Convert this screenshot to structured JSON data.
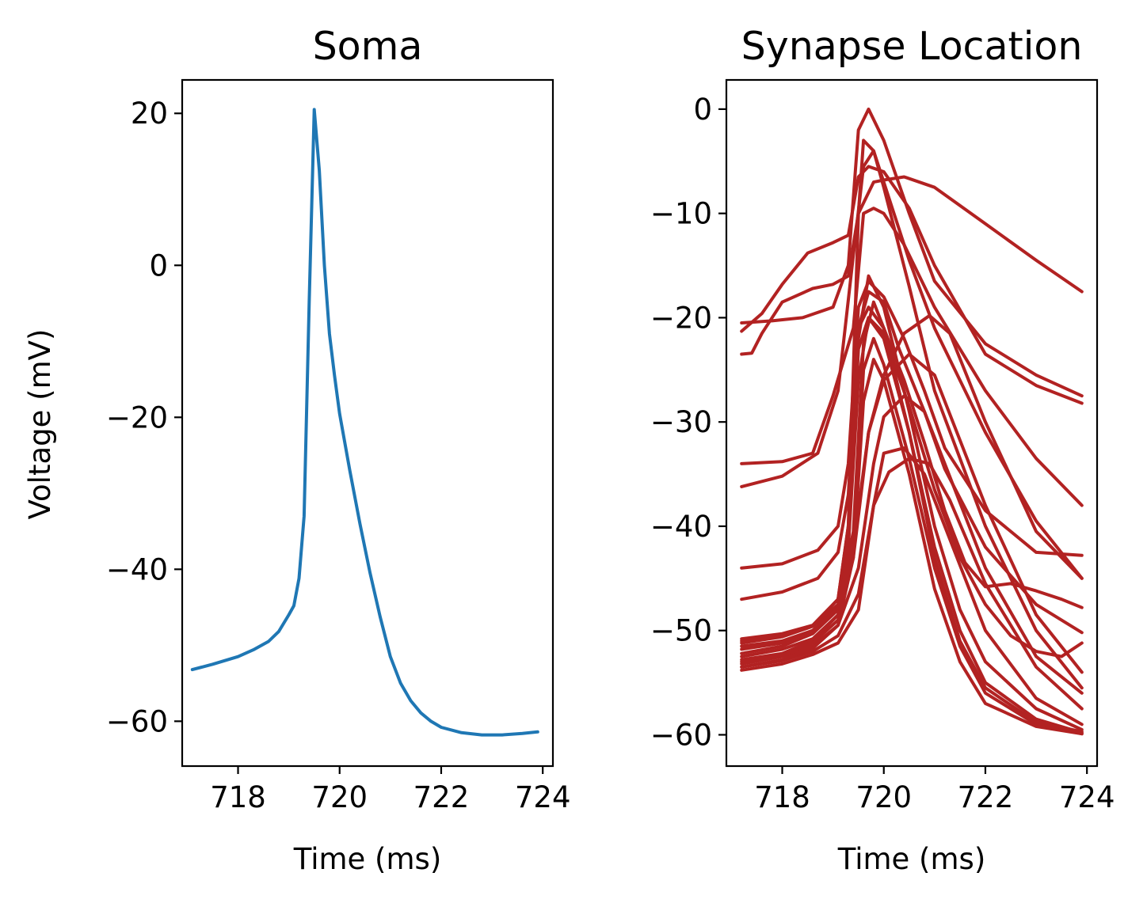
{
  "chart_data": [
    {
      "type": "line",
      "title": "Soma",
      "xlabel": "Time (ms)",
      "ylabel": "Voltage (mV)",
      "xlim": [
        716.9,
        724.2
      ],
      "ylim": [
        -65.9,
        24.4
      ],
      "xticks": [
        718,
        720,
        722,
        724
      ],
      "yticks": [
        20,
        0,
        -20,
        -40,
        -60
      ],
      "xtick_labels": [
        "718",
        "720",
        "722",
        "724"
      ],
      "ytick_labels": [
        "20",
        "0",
        "−20",
        "−40",
        "−60"
      ],
      "grid": false,
      "color": "#1f77b4",
      "series": [
        {
          "x": [
            717.1,
            717.5,
            718.0,
            718.3,
            718.6,
            718.8,
            719.0,
            719.1,
            719.2,
            719.3,
            719.4,
            719.5,
            719.6,
            719.7,
            719.8,
            719.9,
            720.0,
            720.2,
            720.4,
            720.6,
            720.8,
            721.0,
            721.2,
            721.4,
            721.6,
            721.8,
            722.0,
            722.4,
            722.8,
            723.2,
            723.6,
            723.9
          ],
          "y": [
            -53.2,
            -52.5,
            -51.5,
            -50.6,
            -49.5,
            -48.2,
            -46.0,
            -44.8,
            -41.2,
            -33.0,
            -5.0,
            20.5,
            12.5,
            0.0,
            -9.0,
            -14.5,
            -19.5,
            -27.0,
            -34.0,
            -40.5,
            -46.3,
            -51.5,
            -55.0,
            -57.3,
            -58.9,
            -60.0,
            -60.8,
            -61.5,
            -61.8,
            -61.8,
            -61.6,
            -61.4
          ]
        }
      ]
    },
    {
      "type": "line",
      "title": "Synapse Location",
      "xlabel": "Time (ms)",
      "ylabel": "",
      "xlim": [
        716.9,
        724.2
      ],
      "ylim": [
        -63.0,
        2.8
      ],
      "xticks": [
        718,
        720,
        722,
        724
      ],
      "yticks": [
        0,
        -10,
        -20,
        -30,
        -40,
        -50,
        -60
      ],
      "xtick_labels": [
        "718",
        "720",
        "722",
        "724"
      ],
      "ytick_labels": [
        "0",
        "−10",
        "−20",
        "−30",
        "−40",
        "−50",
        "−60"
      ],
      "grid": false,
      "color": "#b22222",
      "series": [
        {
          "x": [
            717.2,
            717.8,
            718.4,
            719.0,
            719.3,
            719.5,
            719.7,
            720.0,
            720.5,
            721.0,
            722.0,
            723.0,
            723.9
          ],
          "y": [
            -20.5,
            -20.3,
            -20.0,
            -19.0,
            -15.0,
            -2.0,
            0.0,
            -3.0,
            -10.0,
            -16.5,
            -22.5,
            -25.5,
            -27.5
          ]
        },
        {
          "x": [
            717.2,
            717.6,
            718.0,
            718.5,
            719.0,
            719.3,
            719.5,
            719.7,
            720.0,
            720.5,
            721.0,
            722.0,
            723.0,
            723.9
          ],
          "y": [
            -21.3,
            -19.6,
            -16.8,
            -13.8,
            -12.8,
            -12.1,
            -6.5,
            -5.5,
            -6.0,
            -9.5,
            -15.0,
            -23.5,
            -26.5,
            -28.2
          ]
        },
        {
          "x": [
            717.2,
            717.4,
            717.6,
            718.0,
            718.6,
            719.0,
            719.3,
            719.5,
            719.8,
            720.0,
            720.4,
            721.0,
            722.0,
            723.0,
            723.9
          ],
          "y": [
            -23.5,
            -23.4,
            -21.5,
            -18.5,
            -17.2,
            -16.8,
            -16.0,
            -10.0,
            -7.0,
            -6.8,
            -6.5,
            -7.5,
            -11.0,
            -14.5,
            -17.5
          ]
        },
        {
          "x": [
            717.2,
            718.0,
            718.6,
            719.0,
            719.4,
            719.6,
            719.8,
            720.0,
            720.4,
            721.0,
            722.0,
            723.0,
            723.9
          ],
          "y": [
            -34.0,
            -33.8,
            -33.0,
            -27.5,
            -21.0,
            -10.0,
            -9.5,
            -10.0,
            -13.0,
            -19.0,
            -27.0,
            -33.5,
            -38.0
          ]
        },
        {
          "x": [
            717.2,
            718.0,
            718.7,
            719.1,
            719.4,
            719.6,
            719.8,
            720.0,
            720.5,
            721.0,
            722.0,
            723.0,
            723.9
          ],
          "y": [
            -36.2,
            -35.2,
            -33.0,
            -27.0,
            -14.0,
            -5.5,
            -4.0,
            -7.0,
            -14.5,
            -21.0,
            -31.0,
            -39.5,
            -45.0
          ]
        },
        {
          "x": [
            717.2,
            718.0,
            718.7,
            719.1,
            719.3,
            719.5,
            719.7,
            720.0,
            720.4,
            720.8,
            721.2,
            722.0,
            723.0,
            723.9
          ],
          "y": [
            -44.0,
            -43.6,
            -42.3,
            -40.0,
            -34.0,
            -19.0,
            -16.5,
            -18.0,
            -22.0,
            -27.0,
            -32.5,
            -38.5,
            -42.5,
            -42.8
          ]
        },
        {
          "x": [
            717.2,
            718.0,
            718.7,
            719.1,
            719.3,
            719.5,
            719.7,
            720.0,
            720.3,
            720.8,
            721.2,
            722.0,
            723.0,
            723.9
          ],
          "y": [
            -47.0,
            -46.3,
            -45.0,
            -42.5,
            -37.0,
            -21.0,
            -17.5,
            -18.5,
            -23.0,
            -29.0,
            -34.5,
            -42.0,
            -47.5,
            -50.2
          ]
        },
        {
          "x": [
            717.2,
            718.0,
            718.6,
            719.1,
            719.3,
            719.5,
            719.6,
            719.8,
            720.0,
            720.5,
            721.0,
            722.0,
            723.0,
            723.9
          ],
          "y": [
            -50.8,
            -50.3,
            -49.5,
            -47.0,
            -40.0,
            -10.0,
            -3.0,
            -4.0,
            -7.5,
            -17.0,
            -27.0,
            -40.0,
            -50.0,
            -55.5
          ]
        },
        {
          "x": [
            717.2,
            718.0,
            718.6,
            719.1,
            719.3,
            719.5,
            719.7,
            720.0,
            720.4,
            720.8,
            721.2,
            721.6,
            722.0,
            722.5,
            723.0,
            723.5,
            723.9
          ],
          "y": [
            -51.2,
            -50.6,
            -49.6,
            -47.5,
            -41.0,
            -21.0,
            -19.0,
            -21.0,
            -26.0,
            -32.0,
            -38.5,
            -43.5,
            -45.8,
            -45.5,
            -46.2,
            -47.0,
            -47.8
          ]
        },
        {
          "x": [
            717.2,
            718.0,
            718.6,
            719.1,
            719.3,
            719.5,
            719.7,
            720.0,
            720.5,
            721.0,
            721.5,
            722.0,
            722.5,
            723.0,
            723.5,
            723.9
          ],
          "y": [
            -51.8,
            -51.2,
            -50.0,
            -47.8,
            -42.0,
            -23.0,
            -20.0,
            -21.5,
            -28.5,
            -36.5,
            -43.0,
            -47.5,
            -50.5,
            -52.0,
            -52.5,
            -51.2
          ]
        },
        {
          "x": [
            717.2,
            718.0,
            718.6,
            719.1,
            719.4,
            719.7,
            720.0,
            720.4,
            720.9,
            721.3,
            722.0,
            723.0,
            723.9
          ],
          "y": [
            -52.2,
            -51.5,
            -50.3,
            -48.0,
            -42.0,
            -31.0,
            -25.5,
            -21.5,
            -19.8,
            -21.5,
            -30.0,
            -40.5,
            -45.0
          ]
        },
        {
          "x": [
            717.2,
            718.0,
            718.6,
            719.1,
            719.4,
            719.7,
            720.0,
            720.5,
            721.0,
            722.0,
            723.0,
            723.9
          ],
          "y": [
            -52.8,
            -52.2,
            -51.0,
            -48.5,
            -43.0,
            -31.0,
            -26.0,
            -23.5,
            -25.5,
            -38.0,
            -48.5,
            -54.0
          ]
        },
        {
          "x": [
            717.2,
            718.0,
            718.6,
            719.1,
            719.5,
            719.8,
            720.0,
            720.4,
            720.8,
            721.2,
            722.0,
            723.0,
            723.9
          ],
          "y": [
            -53.2,
            -52.5,
            -51.5,
            -49.5,
            -44.0,
            -34.0,
            -29.5,
            -27.5,
            -29.0,
            -34.0,
            -44.0,
            -52.5,
            -56.0
          ]
        },
        {
          "x": [
            717.2,
            718.0,
            718.6,
            719.1,
            719.5,
            719.8,
            720.1,
            720.5,
            720.9,
            721.3,
            722.0,
            723.0,
            723.9
          ],
          "y": [
            -53.5,
            -52.9,
            -52.0,
            -50.5,
            -46.5,
            -38.0,
            -34.8,
            -33.5,
            -34.0,
            -37.5,
            -45.5,
            -53.5,
            -57.5
          ]
        },
        {
          "x": [
            717.2,
            718.0,
            718.6,
            719.1,
            719.5,
            719.8,
            720.0,
            720.4,
            720.8,
            721.2,
            722.0,
            723.0,
            723.9
          ],
          "y": [
            -53.8,
            -53.2,
            -52.3,
            -51.2,
            -48.0,
            -38.0,
            -33.0,
            -32.5,
            -35.0,
            -40.0,
            -50.0,
            -56.5,
            -59.0
          ]
        },
        {
          "x": [
            717.2,
            718.0,
            718.6,
            719.1,
            719.3,
            719.5,
            719.7,
            720.0,
            720.5,
            721.0,
            721.5,
            722.0,
            723.0,
            723.9
          ],
          "y": [
            -51.0,
            -50.5,
            -49.5,
            -47.0,
            -40.0,
            -22.0,
            -16.0,
            -19.0,
            -29.0,
            -40.0,
            -48.0,
            -53.0,
            -57.5,
            -59.5
          ]
        },
        {
          "x": [
            717.2,
            718.0,
            718.6,
            719.1,
            719.3,
            719.5,
            719.7,
            720.0,
            720.5,
            721.0,
            721.5,
            722.0,
            723.0,
            723.9
          ],
          "y": [
            -52.5,
            -51.8,
            -50.8,
            -48.5,
            -42.0,
            -26.0,
            -20.0,
            -22.0,
            -31.0,
            -42.0,
            -50.0,
            -55.0,
            -58.5,
            -59.8
          ]
        },
        {
          "x": [
            717.2,
            718.0,
            718.6,
            719.1,
            719.4,
            719.6,
            719.8,
            720.0,
            720.5,
            721.0,
            721.5,
            722.0,
            723.0,
            723.9
          ],
          "y": [
            -53.0,
            -52.3,
            -51.2,
            -49.0,
            -42.0,
            -25.0,
            -22.0,
            -24.5,
            -33.5,
            -44.0,
            -51.5,
            -56.0,
            -59.0,
            -59.9
          ]
        },
        {
          "x": [
            717.2,
            718.0,
            718.6,
            719.1,
            719.4,
            719.6,
            719.8,
            720.0,
            720.5,
            721.0,
            721.5,
            722.0,
            723.0,
            723.9
          ],
          "y": [
            -53.5,
            -52.8,
            -51.7,
            -49.5,
            -43.0,
            -28.0,
            -24.0,
            -26.0,
            -35.0,
            -46.0,
            -53.0,
            -57.0,
            -59.2,
            -59.9
          ]
        },
        {
          "x": [
            717.2,
            718.0,
            718.6,
            719.1,
            719.4,
            719.6,
            719.8,
            720.0,
            720.5,
            721.0,
            721.5,
            722.0,
            723.0,
            723.9
          ],
          "y": [
            -51.5,
            -51.0,
            -50.0,
            -47.8,
            -40.5,
            -22.5,
            -18.5,
            -21.0,
            -31.0,
            -43.0,
            -51.0,
            -55.5,
            -58.8,
            -59.7
          ]
        }
      ]
    }
  ]
}
